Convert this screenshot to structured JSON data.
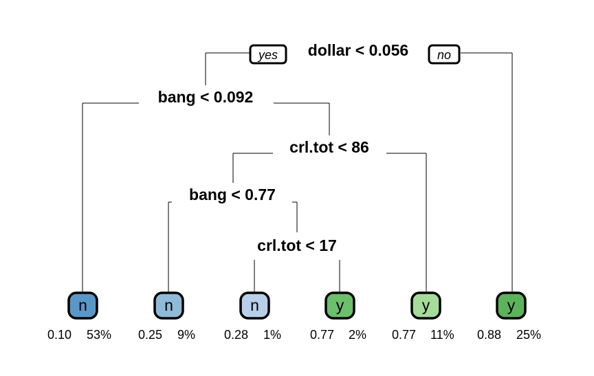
{
  "tree": {
    "edge_labels": {
      "left": "yes",
      "right": "no"
    },
    "splits": [
      {
        "id": "dollar-split",
        "label": "dollar < 0.056"
      },
      {
        "id": "bang-split-1",
        "label": "bang < 0.092"
      },
      {
        "id": "crl-tot-split-1",
        "label": "crl.tot < 86"
      },
      {
        "id": "bang-split-2",
        "label": "bang < 0.77"
      },
      {
        "id": "crl-tot-split-2",
        "label": "crl.tot < 17"
      }
    ],
    "leaves": [
      {
        "class": "n",
        "prob": "0.10",
        "pct": "53%",
        "color": "#5a97c9"
      },
      {
        "class": "n",
        "prob": "0.25",
        "pct": "9%",
        "color": "#8fbad9"
      },
      {
        "class": "n",
        "prob": "0.28",
        "pct": "1%",
        "color": "#b7cfea"
      },
      {
        "class": "y",
        "prob": "0.77",
        "pct": "2%",
        "color": "#6cbf6c"
      },
      {
        "class": "y",
        "prob": "0.77",
        "pct": "11%",
        "color": "#a6dc9a"
      },
      {
        "class": "y",
        "prob": "0.88",
        "pct": "25%",
        "color": "#5db35b"
      }
    ]
  }
}
